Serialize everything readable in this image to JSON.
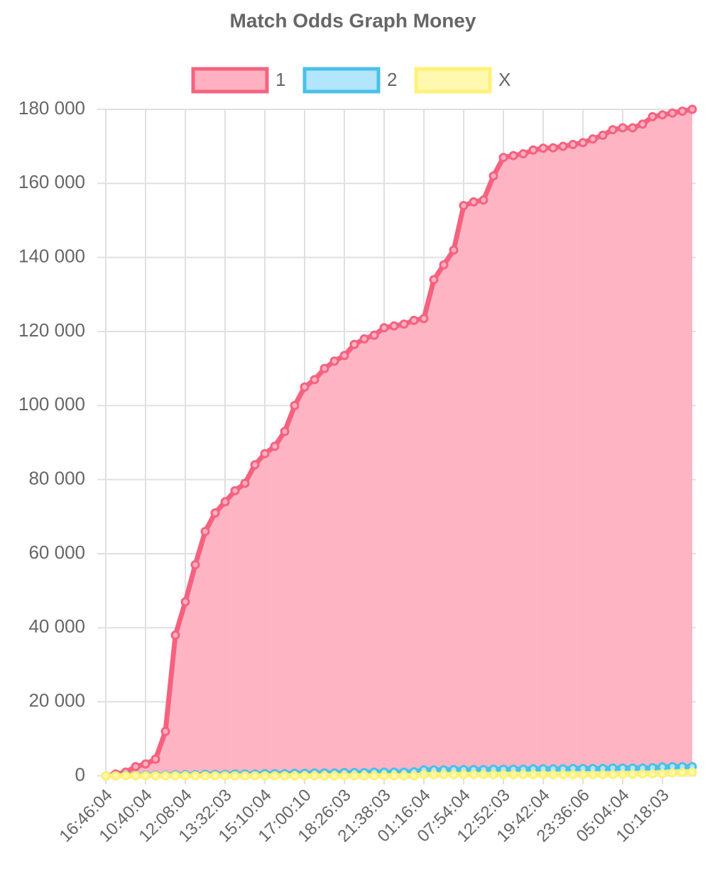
{
  "chart_data": {
    "type": "line",
    "title": "Match Odds Graph Money",
    "categories": [
      "16:46:04",
      null,
      null,
      null,
      "10:40:04",
      null,
      null,
      null,
      "12:08:04",
      null,
      null,
      null,
      "13:32:03",
      null,
      null,
      null,
      "15:10:04",
      null,
      null,
      null,
      "17:00:10",
      null,
      null,
      null,
      "18:26:03",
      null,
      null,
      null,
      "21:38:03",
      null,
      null,
      null,
      "01:16:04",
      null,
      null,
      null,
      "07:54:04",
      null,
      null,
      null,
      "12:52:03",
      null,
      null,
      null,
      "19:42:04",
      null,
      null,
      null,
      "23:36:06",
      null,
      null,
      null,
      "05:04:04",
      null,
      null,
      null,
      "10:18:03",
      null,
      null,
      null
    ],
    "series": [
      {
        "name": "1",
        "color": "#f5627f",
        "fill": "#ffb0c1",
        "values": [
          0,
          500,
          1000,
          2500,
          3200,
          4500,
          12000,
          38000,
          47000,
          57000,
          66000,
          71000,
          74000,
          77000,
          79000,
          84000,
          87000,
          89000,
          93000,
          100000,
          105000,
          107000,
          110000,
          112000,
          113500,
          116500,
          118000,
          119000,
          121000,
          121500,
          122000,
          123000,
          123500,
          134000,
          138000,
          142000,
          154000,
          155000,
          155500,
          162000,
          167000,
          167500,
          168000,
          169000,
          169500,
          169600,
          170000,
          170500,
          171000,
          172000,
          173000,
          174500,
          175000,
          175000,
          176000,
          178000,
          178500,
          179000,
          179500,
          180000
        ]
      },
      {
        "name": "2",
        "color": "#4bc0e8",
        "fill": "#b3e5fc",
        "values": [
          0,
          0,
          100,
          100,
          200,
          200,
          200,
          300,
          300,
          300,
          400,
          400,
          400,
          500,
          500,
          500,
          600,
          600,
          600,
          700,
          700,
          800,
          800,
          800,
          900,
          900,
          900,
          1000,
          1000,
          1000,
          1000,
          1100,
          1600,
          1600,
          1600,
          1700,
          1700,
          1700,
          1700,
          1800,
          1800,
          1800,
          1800,
          1900,
          1900,
          1900,
          1900,
          2000,
          2000,
          2000,
          2000,
          2100,
          2100,
          2100,
          2100,
          2200,
          2400,
          2500,
          2500,
          2500
        ]
      },
      {
        "name": "X",
        "color": "#fff176",
        "fill": "#fff9b0",
        "values": [
          0,
          0,
          0,
          0,
          0,
          0,
          0,
          0,
          0,
          0,
          0,
          0,
          0,
          0,
          0,
          0,
          0,
          0,
          0,
          0,
          0,
          0,
          0,
          0,
          0,
          0,
          0,
          0,
          0,
          0,
          0,
          0,
          300,
          300,
          300,
          300,
          300,
          300,
          300,
          300,
          300,
          300,
          300,
          300,
          300,
          300,
          300,
          300,
          300,
          300,
          300,
          300,
          400,
          400,
          500,
          500,
          600,
          800,
          900,
          1000
        ]
      }
    ],
    "ylim": [
      0,
      180000
    ],
    "yticks": [
      0,
      {
        "value": 20000,
        "label": "20 000"
      },
      {
        "value": 40000,
        "label": "40 000"
      },
      {
        "value": 60000,
        "label": "60 000"
      },
      {
        "value": 80000,
        "label": "80 000"
      },
      {
        "value": 100000,
        "label": "100 000"
      },
      {
        "value": 120000,
        "label": "120 000"
      },
      {
        "value": 140000,
        "label": "140 000"
      },
      {
        "value": 160000,
        "label": "160 000"
      },
      {
        "value": 180000,
        "label": "180 000"
      }
    ],
    "grid": true
  }
}
